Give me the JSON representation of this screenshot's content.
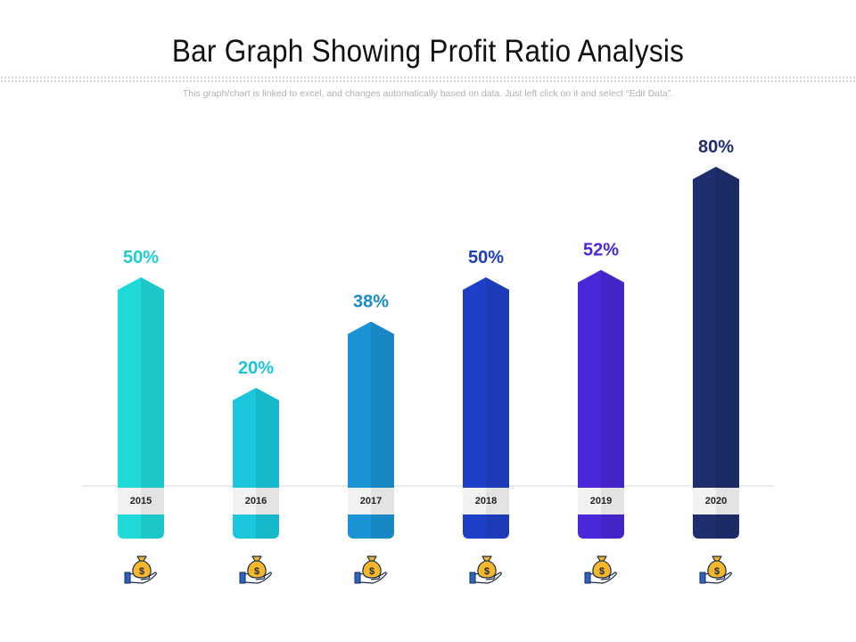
{
  "title": "Bar Graph Showing Profit Ratio Analysis",
  "subtitle": "This graph/chart is linked to excel, and changes automatically based on data. Just left click on it and select “Edit Data”.",
  "chart_data": {
    "type": "bar",
    "title": "Bar Graph Showing Profit Ratio Analysis",
    "categories": [
      "2015",
      "2016",
      "2017",
      "2018",
      "2019",
      "2020"
    ],
    "values": [
      50,
      20,
      38,
      50,
      52,
      80
    ],
    "data_labels": [
      "50%",
      "20%",
      "38%",
      "50%",
      "52%",
      "80%"
    ],
    "colors": [
      "#1fdad8",
      "#1ac7dc",
      "#1a94d4",
      "#1e40c8",
      "#4a27d8",
      "#1f2f6e"
    ],
    "label_colors": [
      "#1fcfd0",
      "#1ac7dc",
      "#1a8ccc",
      "#1e3fb8",
      "#4a27d8",
      "#1f2f6e"
    ],
    "ylim": [
      0,
      100
    ],
    "icon": "money-bag-hand-icon",
    "grid": false,
    "legend": "none"
  }
}
